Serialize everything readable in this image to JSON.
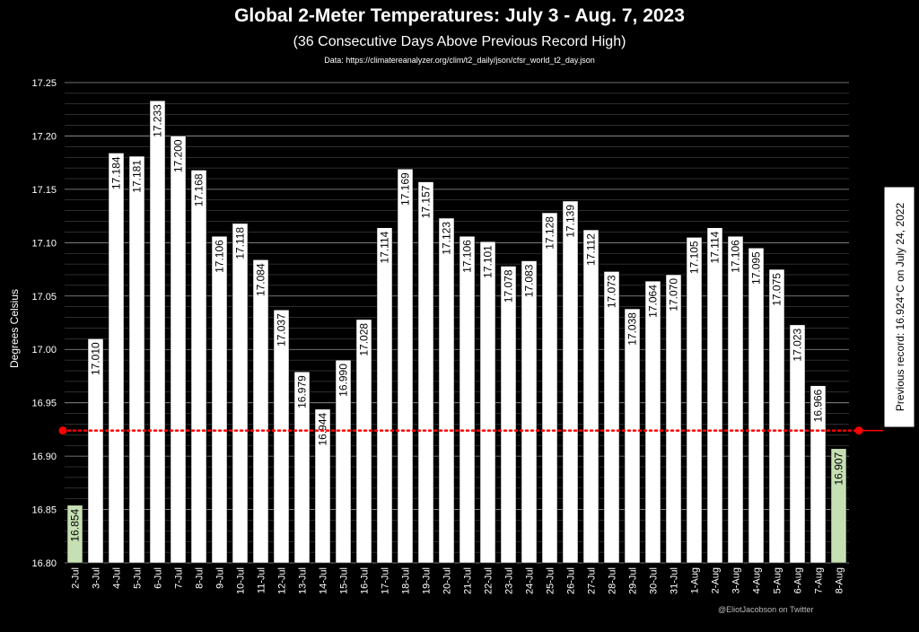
{
  "title": "Global 2-Meter Temperatures: July 3 - Aug. 7, 2023",
  "subtitle": "(36 Consecutive Days Above Previous Record High)",
  "source": "Data: https://climatereanalyzer.org/clim/t2_daily/json/cfsr_world_t2_day.json",
  "credit": "@EliotJacobson on Twitter",
  "chart_data": {
    "type": "bar",
    "title": "Global 2-Meter Temperatures: July 3 - Aug. 7, 2023",
    "subtitle": "(36 Consecutive Days Above Previous Record High)",
    "ylabel": "Degrees Celsius",
    "xlabel": "",
    "ylim": [
      16.8,
      17.25
    ],
    "yticks": [
      "16.80",
      "16.85",
      "16.90",
      "16.95",
      "17.00",
      "17.05",
      "17.10",
      "17.15",
      "17.20",
      "17.25"
    ],
    "grid": true,
    "categories": [
      "2-Jul",
      "3-Jul",
      "4-Jul",
      "5-Jul",
      "6-Jul",
      "7-Jul",
      "8-Jul",
      "9-Jul",
      "10-Jul",
      "11-Jul",
      "12-Jul",
      "13-Jul",
      "14-Jul",
      "15-Jul",
      "16-Jul",
      "17-Jul",
      "18-Jul",
      "19-Jul",
      "20-Jul",
      "21-Jul",
      "22-Jul",
      "23-Jul",
      "24-Jul",
      "25-Jul",
      "26-Jul",
      "27-Jul",
      "28-Jul",
      "29-Jul",
      "30-Jul",
      "31-Jul",
      "1-Aug",
      "2-Aug",
      "3-Aug",
      "4-Aug",
      "5-Aug",
      "6-Aug",
      "7-Aug",
      "8-Aug"
    ],
    "values": [
      16.854,
      17.01,
      17.184,
      17.181,
      17.233,
      17.2,
      17.168,
      17.106,
      17.118,
      17.084,
      17.037,
      16.979,
      16.944,
      16.99,
      17.028,
      17.114,
      17.169,
      17.157,
      17.123,
      17.106,
      17.101,
      17.078,
      17.083,
      17.128,
      17.139,
      17.112,
      17.073,
      17.038,
      17.064,
      17.07,
      17.105,
      17.114,
      17.106,
      17.095,
      17.075,
      17.023,
      16.966,
      16.907
    ],
    "labels": [
      "16.854",
      "17.010",
      "17.184",
      "17.181",
      "17.233",
      "17.200",
      "17.168",
      "17.106",
      "17.118",
      "17.084",
      "17.037",
      "16.979",
      "16.944",
      "16.990",
      "17.028",
      "17.114",
      "17.169",
      "17.157",
      "17.123",
      "17.106",
      "17.101",
      "17.078",
      "17.083",
      "17.128",
      "17.139",
      "17.112",
      "17.073",
      "17.038",
      "17.064",
      "17.070",
      "17.105",
      "17.114",
      "17.106",
      "17.095",
      "17.075",
      "17.023",
      "16.966",
      "16.907"
    ],
    "highlight_categories": [
      "2-Jul",
      "8-Aug"
    ],
    "reference_line": {
      "value": 16.924,
      "label": "Previous record: 16.924°C on July 24, 2022"
    },
    "colors": {
      "background": "#000000",
      "bar": "#ffffff",
      "bar_highlight": "#c6e0b4",
      "reference": "#ff0000",
      "grid": "#ffffff"
    }
  }
}
